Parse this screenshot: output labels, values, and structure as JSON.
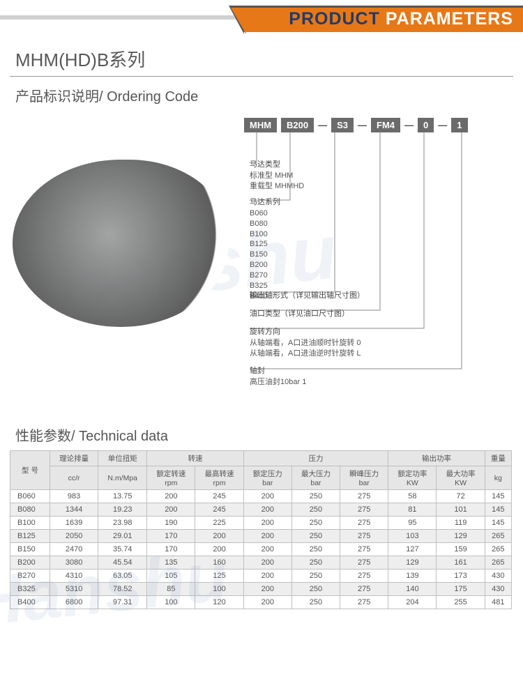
{
  "banner": {
    "word1": "PRODUCT",
    "word2": "PARAMETERS"
  },
  "seriesTitle": "MHM(HD)B系列",
  "orderingTitle": "产品标识说明/ Ordering Code",
  "code": [
    "MHM",
    "B200",
    "S3",
    "FM4",
    "0",
    "1"
  ],
  "desc": {
    "motorType": {
      "title": "马达类型",
      "rows": [
        "标准型   MHM",
        "重载型   MHMHD"
      ]
    },
    "motorSeries": {
      "title": "马达系列",
      "rows": [
        "B060",
        "B080",
        "B100",
        "B125",
        "B150",
        "B200",
        "B270",
        "B325",
        "B400"
      ]
    },
    "shaft": {
      "title": "输出轴形式（详见输出轴尺寸图）"
    },
    "port": {
      "title": "油口类型（详见油口尺寸图）"
    },
    "rotation": {
      "title": "旋转方向",
      "rows": [
        "从轴端看，A口进油顺时针旋转   0",
        "从轴端看，A口进油逆时针旋转   L"
      ]
    },
    "seal": {
      "title": "轴封",
      "rows": [
        "高压油封10bar   1"
      ]
    }
  },
  "techTitle": "性能参数/ Technical data",
  "table": {
    "colGroups": [
      "型 号",
      "理论排量",
      "单位扭矩",
      "转速",
      "压力",
      "输出功率",
      "重量"
    ],
    "subHeaders": {
      "displacement": "cc/r",
      "torque": "N.m/Mpa",
      "speedRated": "额定转速\nrpm",
      "speedMax": "最高转速\nrpm",
      "pRated": "额定压力\nbar",
      "pMax": "最大压力\nbar",
      "pPeak": "瞬峰压力\nbar",
      "powRated": "额定功率\nKW",
      "powMax": "最大功率\nKW",
      "weight": "kg"
    },
    "rows": [
      [
        "B060",
        "983",
        "13.75",
        "200",
        "245",
        "200",
        "250",
        "275",
        "58",
        "72",
        "145"
      ],
      [
        "B080",
        "1344",
        "19.23",
        "200",
        "245",
        "200",
        "250",
        "275",
        "81",
        "101",
        "145"
      ],
      [
        "B100",
        "1639",
        "23.98",
        "190",
        "225",
        "200",
        "250",
        "275",
        "95",
        "119",
        "145"
      ],
      [
        "B125",
        "2050",
        "29.01",
        "170",
        "200",
        "200",
        "250",
        "275",
        "103",
        "129",
        "265"
      ],
      [
        "B150",
        "2470",
        "35.74",
        "170",
        "200",
        "200",
        "250",
        "275",
        "127",
        "159",
        "265"
      ],
      [
        "B200",
        "3080",
        "45.54",
        "135",
        "160",
        "200",
        "250",
        "275",
        "129",
        "161",
        "265"
      ],
      [
        "B270",
        "4310",
        "63.05",
        "105",
        "125",
        "200",
        "250",
        "275",
        "139",
        "173",
        "430"
      ],
      [
        "B325",
        "5310",
        "78.52",
        "85",
        "100",
        "200",
        "250",
        "275",
        "140",
        "175",
        "430"
      ],
      [
        "B400",
        "6800",
        "97.31",
        "100",
        "120",
        "200",
        "250",
        "275",
        "204",
        "255",
        "481"
      ]
    ]
  },
  "colors": {
    "orange": "#e77817",
    "navy": "#223a6a",
    "grayHeader": "#e6e6e6",
    "grayRow": "#eeeeee",
    "border": "#bfbfbf",
    "text": "#555555"
  },
  "watermark": "Hanshu"
}
